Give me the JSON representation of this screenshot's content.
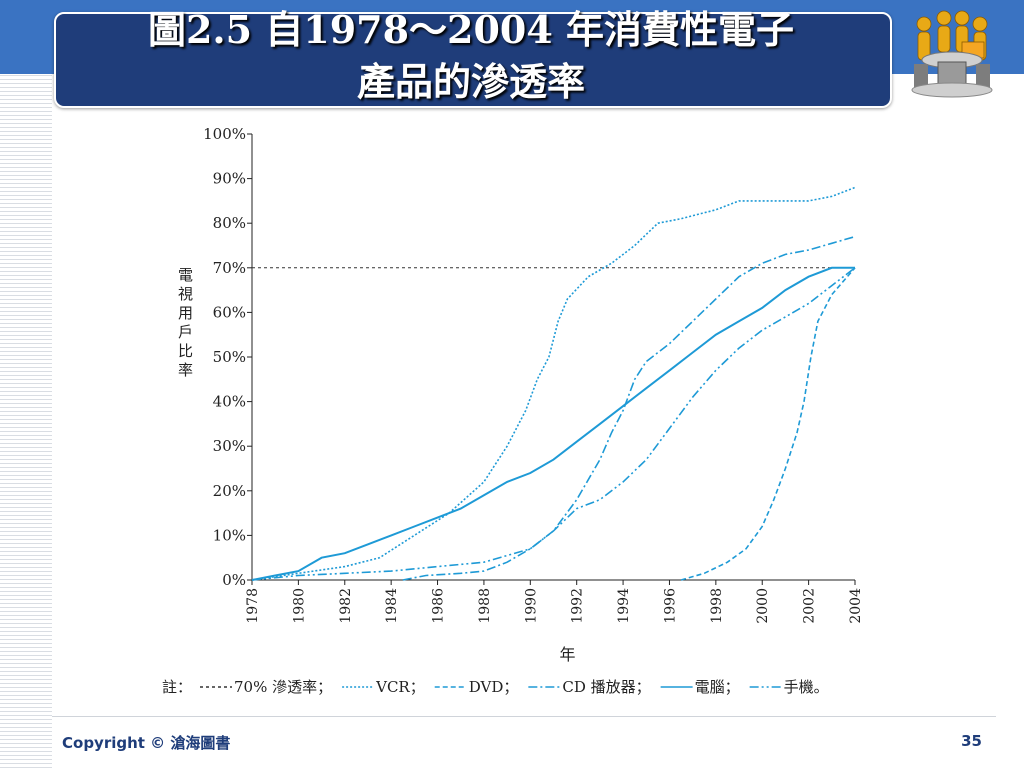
{
  "slide": {
    "title_line1": "圖2.5 自1978～2004 年消費性電子",
    "title_line2": "產品的滲透率",
    "copyright": "Copyright © 滄海圖書",
    "page_number": "35",
    "logo_icon": "people-at-desk-icon"
  },
  "colors": {
    "header_blue": "#3a73c2",
    "title_navy": "#1f3d7a",
    "line_blue": "#1e9ad6"
  },
  "chart_data": {
    "type": "line",
    "ylabel": "電視用戶比率",
    "xlabel": "年",
    "xlim": [
      1978,
      2004
    ],
    "ylim": [
      0,
      100
    ],
    "x_ticks": [
      "1978",
      "1980",
      "1982",
      "1984",
      "1986",
      "1988",
      "1990",
      "1992",
      "1994",
      "1996",
      "1998",
      "2000",
      "2002",
      "2004"
    ],
    "y_ticks": [
      "0%",
      "10%",
      "20%",
      "30%",
      "40%",
      "50%",
      "60%",
      "70%",
      "80%",
      "90%",
      "100%"
    ],
    "reference_line": {
      "value": 70,
      "label": "70% 滲透率"
    },
    "legend_prefix": "註：",
    "legend_suffix": "。",
    "series": [
      {
        "name": "VCR",
        "dash": "dot",
        "points": [
          [
            1978,
            0
          ],
          [
            1980,
            1.5
          ],
          [
            1982,
            3
          ],
          [
            1983.5,
            5
          ],
          [
            1985,
            10
          ],
          [
            1986.5,
            15
          ],
          [
            1988,
            22
          ],
          [
            1989,
            30
          ],
          [
            1989.8,
            38
          ],
          [
            1990.3,
            45
          ],
          [
            1990.8,
            50
          ],
          [
            1991.2,
            58
          ],
          [
            1991.6,
            63
          ],
          [
            1992.5,
            68
          ],
          [
            1993.5,
            71
          ],
          [
            1994.5,
            75
          ],
          [
            1995.5,
            80
          ],
          [
            1996.5,
            81
          ],
          [
            1998,
            83
          ],
          [
            1999,
            85
          ],
          [
            2000,
            85
          ],
          [
            2001,
            85
          ],
          [
            2002,
            85
          ],
          [
            2003,
            86
          ],
          [
            2004,
            88
          ]
        ]
      },
      {
        "name": "DVD",
        "dash": "dash",
        "points": [
          [
            1996.5,
            0
          ],
          [
            1997.5,
            1.5
          ],
          [
            1998.5,
            4
          ],
          [
            1999.3,
            7
          ],
          [
            2000,
            12
          ],
          [
            2000.5,
            18
          ],
          [
            2001,
            25
          ],
          [
            2001.5,
            33
          ],
          [
            2001.8,
            40
          ],
          [
            2002.1,
            50
          ],
          [
            2002.4,
            58
          ],
          [
            2003,
            64
          ],
          [
            2003.5,
            67
          ],
          [
            2004,
            70
          ]
        ]
      },
      {
        "name": "CD 播放器",
        "dash": "dashdot",
        "points": [
          [
            1984.5,
            0
          ],
          [
            1985.5,
            1
          ],
          [
            1987,
            1.5
          ],
          [
            1988,
            2
          ],
          [
            1989,
            4
          ],
          [
            1990,
            7
          ],
          [
            1991,
            11
          ],
          [
            1992,
            18
          ],
          [
            1993,
            27
          ],
          [
            1993.5,
            33
          ],
          [
            1994,
            38
          ],
          [
            1994.5,
            45
          ],
          [
            1995,
            49
          ],
          [
            1996,
            53
          ],
          [
            1997,
            58
          ],
          [
            1998,
            63
          ],
          [
            1999,
            68
          ],
          [
            2000,
            71
          ],
          [
            2001,
            73
          ],
          [
            2002,
            74
          ],
          [
            2003,
            75.5
          ],
          [
            2004,
            77
          ]
        ]
      },
      {
        "name": "電腦",
        "dash": "solid",
        "points": [
          [
            1978,
            0
          ],
          [
            1979,
            1
          ],
          [
            1980,
            2
          ],
          [
            1981,
            5
          ],
          [
            1982,
            6
          ],
          [
            1983,
            8
          ],
          [
            1984,
            10
          ],
          [
            1985,
            12
          ],
          [
            1986,
            14
          ],
          [
            1987,
            16
          ],
          [
            1988,
            19
          ],
          [
            1989,
            22
          ],
          [
            1990,
            24
          ],
          [
            1991,
            27
          ],
          [
            1992,
            31
          ],
          [
            1993,
            35
          ],
          [
            1994,
            39
          ],
          [
            1995,
            43
          ],
          [
            1996,
            47
          ],
          [
            1997,
            51
          ],
          [
            1998,
            55
          ],
          [
            1999,
            58
          ],
          [
            2000,
            61
          ],
          [
            2001,
            65
          ],
          [
            2002,
            68
          ],
          [
            2003,
            70
          ],
          [
            2004,
            70
          ]
        ]
      },
      {
        "name": "手機",
        "dash": "dashdotdot",
        "points": [
          [
            1978,
            0
          ],
          [
            1980,
            1
          ],
          [
            1982,
            1.5
          ],
          [
            1984,
            2
          ],
          [
            1986,
            3
          ],
          [
            1988,
            4
          ],
          [
            1990,
            7
          ],
          [
            1991,
            11
          ],
          [
            1992,
            16
          ],
          [
            1993,
            18
          ],
          [
            1994,
            22
          ],
          [
            1995,
            27
          ],
          [
            1996,
            34
          ],
          [
            1997,
            41
          ],
          [
            1998,
            47
          ],
          [
            1999,
            52
          ],
          [
            2000,
            56
          ],
          [
            2001,
            59
          ],
          [
            2002,
            62
          ],
          [
            2003,
            66
          ],
          [
            2004,
            70
          ]
        ]
      }
    ]
  }
}
